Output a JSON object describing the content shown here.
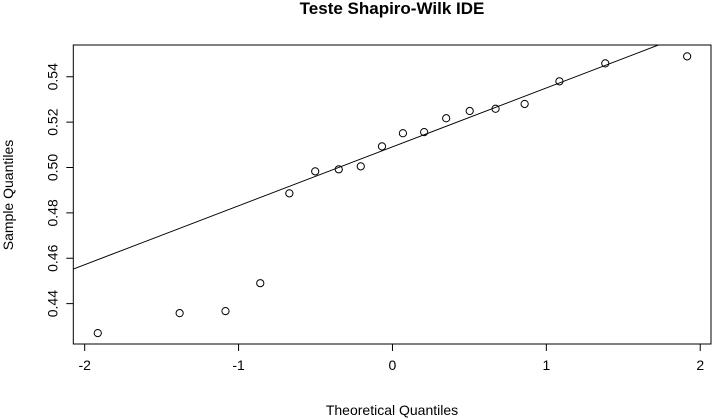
{
  "chart_data": {
    "type": "scatter",
    "title": "Teste Shapiro-Wilk IDE",
    "xlabel": "Theoretical Quantiles",
    "ylabel": "Sample Quantiles",
    "xlim": [
      -2.074,
      2.07
    ],
    "ylim": [
      0.4222,
      0.554
    ],
    "xticks": [
      -2,
      -1,
      0,
      1,
      2
    ],
    "xtick_labels": [
      "-2",
      "-1",
      "0",
      "1",
      "2"
    ],
    "yticks": [
      0.44,
      0.46,
      0.48,
      0.5,
      0.52,
      0.54
    ],
    "ytick_labels": [
      "0.44",
      "0.46",
      "0.48",
      "0.50",
      "0.52",
      "0.54"
    ],
    "grid": false,
    "points": {
      "x": [
        -1.915,
        -1.383,
        -1.085,
        -0.859,
        -0.67,
        -0.502,
        -0.349,
        -0.206,
        -0.068,
        0.068,
        0.206,
        0.349,
        0.502,
        0.67,
        0.859,
        1.085,
        1.383,
        1.915
      ],
      "y": [
        0.427,
        0.4358,
        0.4367,
        0.449,
        0.4886,
        0.4983,
        0.4992,
        0.5005,
        0.5093,
        0.5151,
        0.5156,
        0.5217,
        0.5249,
        0.5259,
        0.528,
        0.538,
        0.5459,
        0.549
      ]
    },
    "reference_line": {
      "intercept": 0.5091,
      "slope": 0.02597
    }
  }
}
